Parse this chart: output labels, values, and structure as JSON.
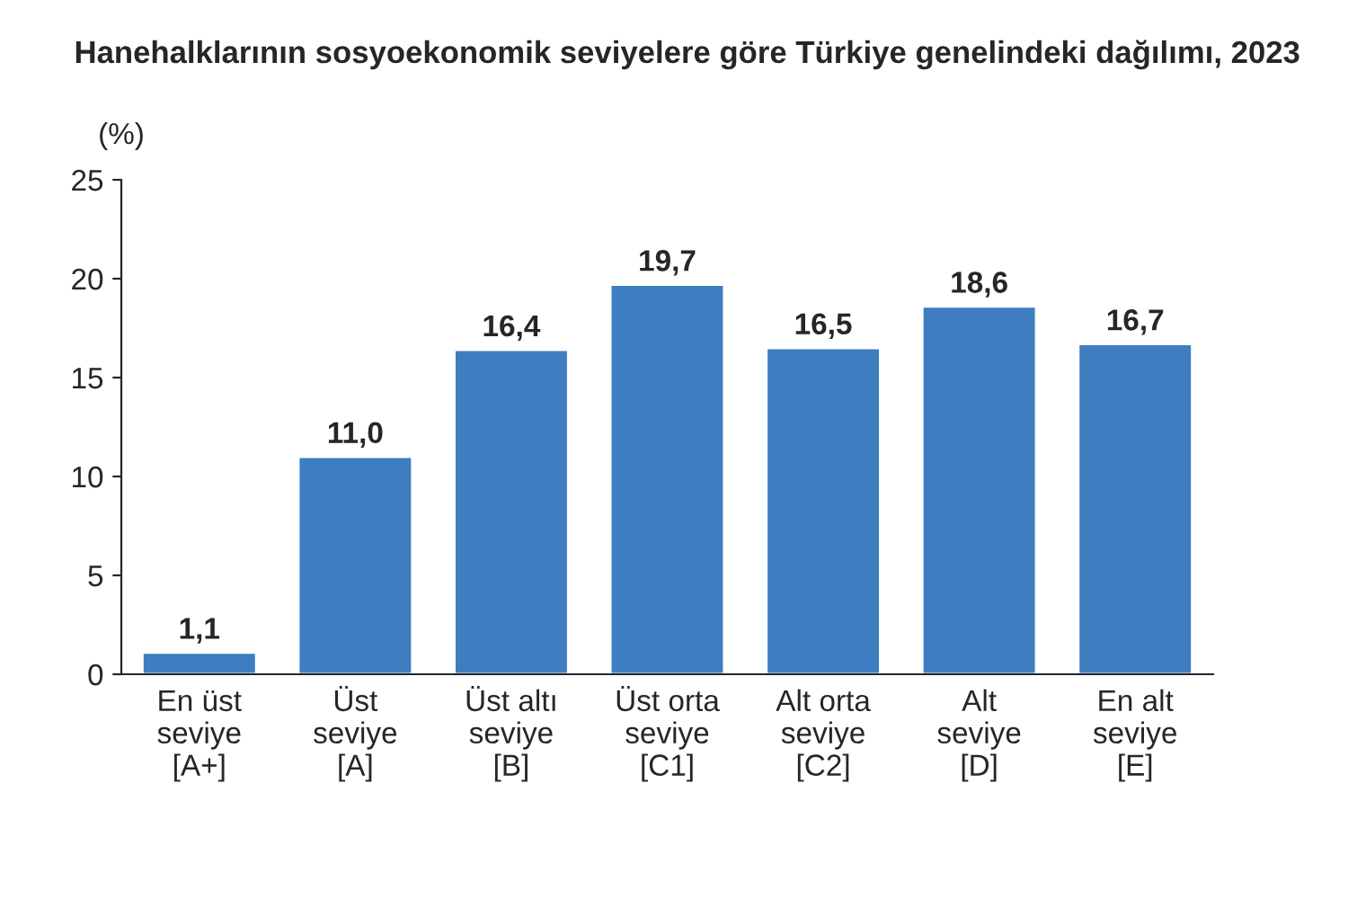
{
  "chart_data": {
    "type": "bar",
    "title": "Hanehalklarının sosyoekonomik seviyelere göre Türkiye genelindeki dağılımı, 2023",
    "ylabel": "(%)",
    "categories": [
      "En üst\nseviye\n[A+]",
      "Üst\nseviye\n[A]",
      "Üst altı\nseviye\n[B]",
      "Üst orta\nseviye\n[C1]",
      "Alt orta\nseviye\n[C2]",
      "Alt\nseviye\n[D]",
      "En alt\nseviye\n[E]"
    ],
    "values": [
      1.1,
      11.0,
      16.4,
      19.7,
      16.5,
      18.6,
      16.7
    ],
    "value_labels": [
      "1,1",
      "11,0",
      "16,4",
      "19,7",
      "16,5",
      "18,6",
      "16,7"
    ],
    "color": "#3f7dc1",
    "ylim": [
      0,
      25
    ],
    "yticks": [
      0,
      5,
      10,
      15,
      20,
      25
    ],
    "grid": false
  }
}
